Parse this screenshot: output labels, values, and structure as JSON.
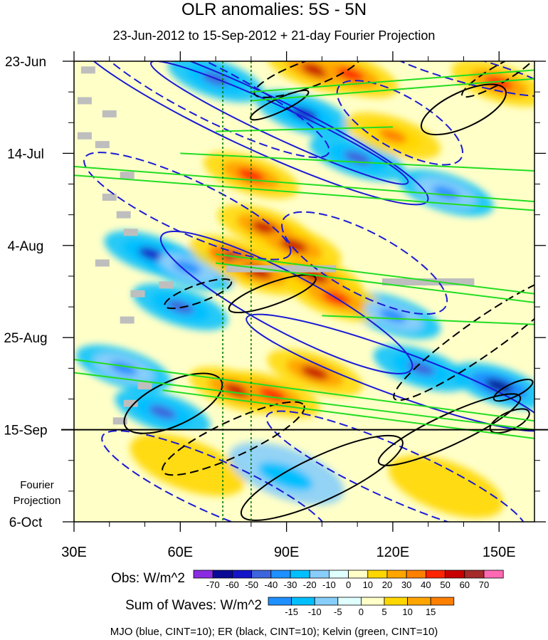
{
  "chart_data": {
    "type": "heatmap",
    "title": "OLR anomalies: 5S - 5N",
    "subtitle": "23-Jun-2012 to 15-Sep-2012 + 21-day Fourier Projection",
    "x_axis": {
      "range": [
        30,
        160
      ],
      "ticks": [
        30,
        60,
        90,
        120,
        150
      ],
      "tick_labels": [
        "30E",
        "60E",
        "90E",
        "120E",
        "150E"
      ]
    },
    "y_axis": {
      "range_days": [
        0,
        105
      ],
      "tick_days": [
        0,
        21,
        42,
        63,
        84,
        105
      ],
      "tick_labels": [
        "23-Jun",
        "14-Jul",
        "4-Aug",
        "25-Aug",
        "15-Sep",
        "6-Oct"
      ]
    },
    "projection_label": [
      "Fourier",
      "Projection"
    ],
    "projection_start_day": 84,
    "reference_lines_lon": [
      72,
      80
    ],
    "obs_colorbar": {
      "label": "Obs: W/m^2",
      "levels": [
        "-70",
        "-60",
        "-50",
        "-40",
        "-30",
        "-20",
        "-10",
        "0",
        "10",
        "20",
        "30",
        "40",
        "50",
        "60",
        "70"
      ],
      "colors": [
        "#8a2be2",
        "#0a0a96",
        "#1414c8",
        "#3c64dc",
        "#1e90ff",
        "#00bfff",
        "#87cefa",
        "#e0ffff",
        "#ffffc8",
        "#ffd700",
        "#ffa500",
        "#ff7f00",
        "#ff2400",
        "#c80000",
        "#a52a2a",
        "#ff69b4"
      ]
    },
    "waves_colorbar": {
      "label": "Sum of Waves: W/m^2",
      "levels": [
        "-15",
        "-10",
        "-5",
        "0",
        "5",
        "10",
        "15"
      ],
      "colors": [
        "#1e90ff",
        "#00bfff",
        "#87cefa",
        "#e0ffff",
        "#ffffc8",
        "#ffd700",
        "#ffa500",
        "#ff7f00"
      ]
    },
    "caption": "MJO (blue, CINT=10); ER (black, CINT=10); Kelvin (green, CINT=10)",
    "features": {
      "negative_obs": [
        {
          "lon": 70,
          "day": 4,
          "value": -50
        },
        {
          "lon": 95,
          "day": 12,
          "value": -60
        },
        {
          "lon": 110,
          "day": 22,
          "value": -50
        },
        {
          "lon": 135,
          "day": 30,
          "value": -40
        },
        {
          "lon": 52,
          "day": 44,
          "value": -60
        },
        {
          "lon": 62,
          "day": 47,
          "value": -40
        },
        {
          "lon": 60,
          "day": 56,
          "value": -50
        },
        {
          "lon": 150,
          "day": 74,
          "value": -70
        },
        {
          "lon": 128,
          "day": 70,
          "value": -50
        },
        {
          "lon": 44,
          "day": 70,
          "value": -40
        },
        {
          "lon": 55,
          "day": 80,
          "value": -50
        },
        {
          "lon": 120,
          "day": 58,
          "value": -40
        }
      ],
      "positive_obs": [
        {
          "lon": 98,
          "day": 2,
          "value": 50
        },
        {
          "lon": 108,
          "day": 3,
          "value": 40
        },
        {
          "lon": 80,
          "day": 26,
          "value": 40
        },
        {
          "lon": 84,
          "day": 38,
          "value": 50
        },
        {
          "lon": 92,
          "day": 42,
          "value": 50
        },
        {
          "lon": 76,
          "day": 45,
          "value": 60
        },
        {
          "lon": 82,
          "day": 48,
          "value": 50
        },
        {
          "lon": 98,
          "day": 49,
          "value": 50
        },
        {
          "lon": 104,
          "day": 54,
          "value": 40
        },
        {
          "lon": 98,
          "day": 71,
          "value": 50
        },
        {
          "lon": 76,
          "day": 75,
          "value": 50
        },
        {
          "lon": 86,
          "day": 76,
          "value": 40
        },
        {
          "lon": 120,
          "day": 17,
          "value": 30
        },
        {
          "lon": 150,
          "day": 5,
          "value": 40
        }
      ],
      "waves_projection": [
        {
          "lon": 62,
          "day": 92,
          "value": 10
        },
        {
          "lon": 90,
          "day": 94,
          "value": -10
        },
        {
          "lon": 135,
          "day": 97,
          "value": 5
        }
      ]
    }
  }
}
